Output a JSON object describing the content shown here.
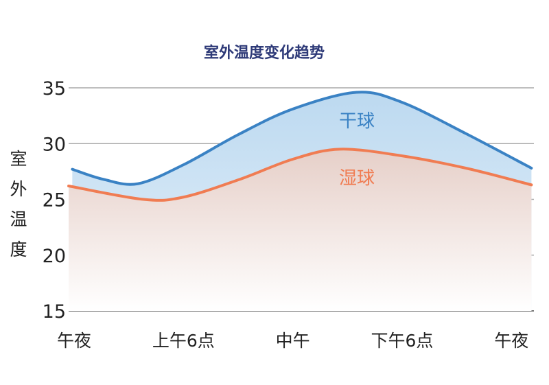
{
  "chart_data": {
    "type": "area",
    "title": "室外温度变化趋势",
    "ylabel": "室外温度",
    "xlabel": "",
    "ylim": [
      15,
      35
    ],
    "yticks": [
      15,
      20,
      25,
      30,
      35
    ],
    "xticks": [
      {
        "hour": 0,
        "label": "午夜"
      },
      {
        "hour": 6,
        "label": "上午6点"
      },
      {
        "hour": 12,
        "label": "中午"
      },
      {
        "hour": 18,
        "label": "下午6点"
      },
      {
        "hour": 24,
        "label": "午夜"
      }
    ],
    "grid": true,
    "series": [
      {
        "name": "干球",
        "color": "#3a82c4",
        "x": [
          -0.1,
          1.6,
          3.5,
          6,
          9,
          12,
          15.5,
          18,
          21.5,
          25.1
        ],
        "values": [
          27.7,
          26.8,
          26.4,
          28.1,
          30.8,
          33.1,
          34.6,
          33.7,
          30.9,
          27.8
        ]
      },
      {
        "name": "湿球",
        "color": "#f07c52",
        "x": [
          -0.3,
          3.8,
          6,
          9.1,
          12,
          14.6,
          18,
          21.5,
          25.1
        ],
        "values": [
          26.2,
          25.0,
          25.2,
          26.8,
          28.6,
          29.5,
          28.9,
          27.8,
          26.3
        ]
      }
    ]
  }
}
